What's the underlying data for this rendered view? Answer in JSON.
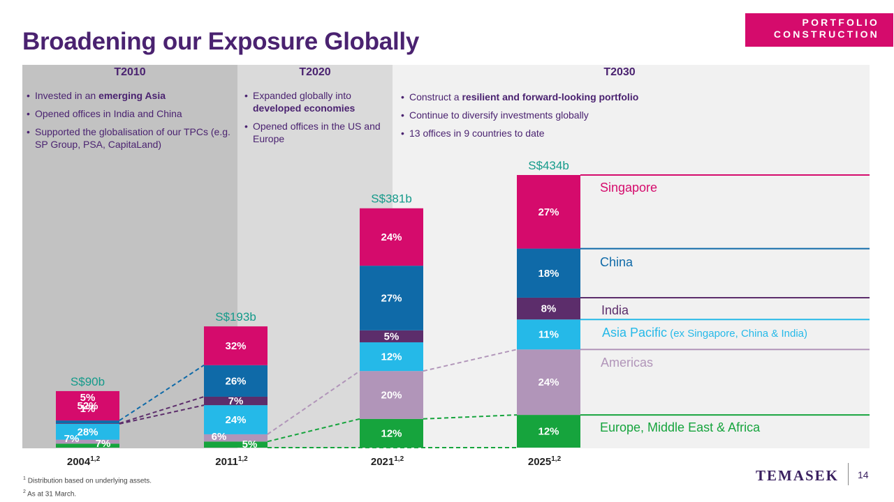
{
  "title": "Broadening our Exposure Globally",
  "tag": {
    "line1": "PORTFOLIO",
    "line2": "CONSTRUCTION"
  },
  "panels": [
    {
      "heading": "T2010",
      "bullets": [
        {
          "pre": "Invested in an ",
          "bold": "emerging Asia",
          "post": ""
        },
        {
          "pre": "Opened offices in India and China",
          "bold": "",
          "post": ""
        },
        {
          "pre": "Supported the globalisation of our TPCs (e.g. SP Group, PSA, CapitaLand)",
          "bold": "",
          "post": ""
        }
      ]
    },
    {
      "heading": "T2020",
      "bullets": [
        {
          "pre": "Expanded globally into ",
          "bold": "developed economies",
          "post": ""
        },
        {
          "pre": "Opened offices in the US and Europe",
          "bold": "",
          "post": ""
        }
      ]
    },
    {
      "heading": "T2030",
      "bullets": [
        {
          "pre": "Construct a ",
          "bold": "resilient and forward-looking portfolio",
          "post": ""
        },
        {
          "pre": "Continue to diversify investments globally",
          "bold": "",
          "post": ""
        },
        {
          "pre": "13 offices in 9 countries to date",
          "bold": "",
          "post": ""
        }
      ]
    }
  ],
  "chart_data": {
    "type": "bar",
    "stacked": true,
    "normalized": "percent of portfolio",
    "categories": [
      "2004",
      "2011",
      "2021",
      "2025"
    ],
    "category_superscript": "1,2",
    "totals": [
      "S$90b",
      "S$193b",
      "S$381b",
      "S$434b"
    ],
    "total_values": [
      90,
      193,
      381,
      434
    ],
    "series": [
      {
        "name": "Europe, Middle East & Africa",
        "color": "#16a43d",
        "values": [
          7,
          5,
          12,
          12
        ]
      },
      {
        "name": "Americas",
        "color": "#b195b9",
        "values": [
          7,
          6,
          20,
          24
        ]
      },
      {
        "name": "Asia Pacific",
        "color": "#25b9e8",
        "values": [
          28,
          24,
          12,
          11
        ]
      },
      {
        "name": "India",
        "color": "#5c2d6b",
        "values": [
          1,
          7,
          5,
          8
        ]
      },
      {
        "name": "China",
        "color": "#0f6aa8",
        "values": [
          5,
          26,
          27,
          18
        ]
      },
      {
        "name": "Singapore",
        "color": "#d50b6c",
        "values": [
          52,
          32,
          24,
          27
        ]
      }
    ],
    "legend": [
      {
        "name": "Singapore",
        "suffix": "",
        "color": "#d50b6c"
      },
      {
        "name": "China",
        "suffix": "",
        "color": "#0f6aa8"
      },
      {
        "name": "India",
        "suffix": "",
        "color": "#5c2d6b"
      },
      {
        "name": "Asia Pacific",
        "suffix": " (ex Singapore, China & India)",
        "color": "#25b9e8"
      },
      {
        "name": "Americas",
        "suffix": "",
        "color": "#b195b9"
      },
      {
        "name": "Europe, Middle East & Africa",
        "suffix": "",
        "color": "#16a43d"
      }
    ],
    "label_color_total": "#149a8a"
  },
  "footnotes": [
    "Distribution based on underlying assets.",
    "As at 31 March."
  ],
  "footnote_marks": [
    "1",
    "2"
  ],
  "logo": "TEMASEK",
  "page_number": "14"
}
